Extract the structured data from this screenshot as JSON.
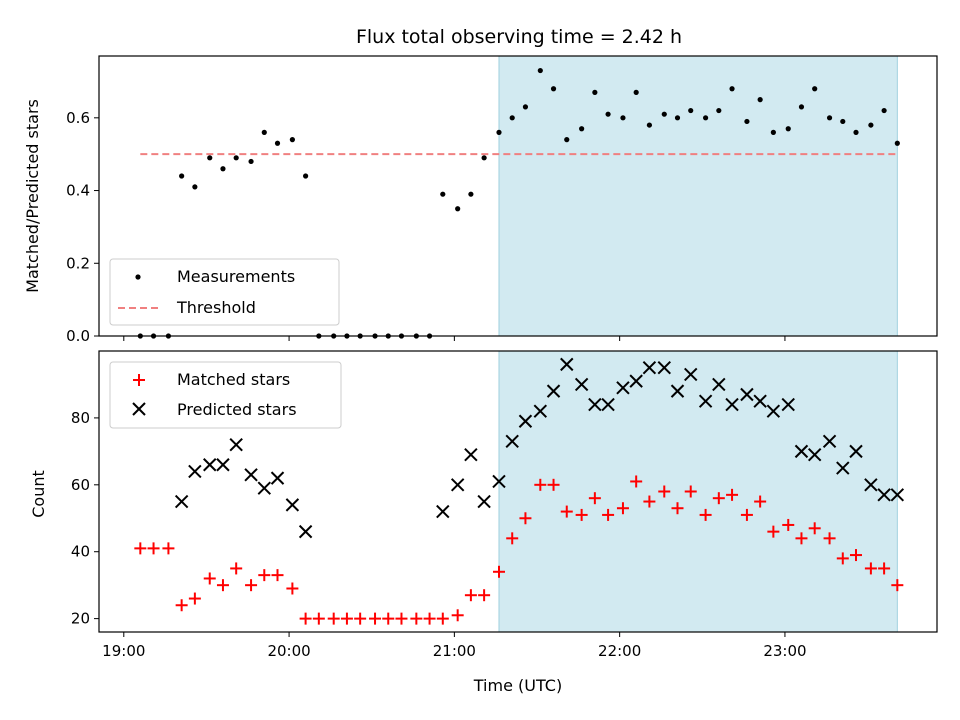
{
  "title": "Flux total observing time = 2.42 h",
  "x_axis": {
    "label": "Time (UTC)",
    "ticks": [
      {
        "value": 19.0,
        "label": "19:00"
      },
      {
        "value": 20.0,
        "label": "20:00"
      },
      {
        "value": 21.0,
        "label": "21:00"
      },
      {
        "value": 22.0,
        "label": "22:00"
      },
      {
        "value": 23.0,
        "label": "23:00"
      }
    ],
    "range": [
      18.85,
      23.92
    ]
  },
  "colors": {
    "measurement": "#000000",
    "threshold": "#f08080",
    "matched": "#ff0000",
    "predicted": "#000000",
    "highlight": "#add8e6"
  },
  "chart_data": [
    {
      "type": "scatter",
      "name": "ratio-panel",
      "ylabel": "Matched/Predicted stars",
      "ylim": [
        0,
        0.77
      ],
      "yticks": [
        0.0,
        0.2,
        0.4,
        0.6
      ],
      "highlight_span": [
        21.27,
        23.68
      ],
      "threshold": {
        "name": "Threshold",
        "value": 0.5,
        "x_range": [
          19.1,
          23.68
        ]
      },
      "legend": {
        "placement": "lower-left"
      },
      "series": [
        {
          "name": "Measurements",
          "x": [
            19.1,
            19.18,
            19.27,
            19.35,
            19.43,
            19.52,
            19.6,
            19.68,
            19.77,
            19.85,
            19.93,
            20.02,
            20.1,
            20.18,
            20.27,
            20.35,
            20.43,
            20.52,
            20.6,
            20.68,
            20.77,
            20.85,
            20.93,
            21.02,
            21.1,
            21.18,
            21.27,
            21.35,
            21.43,
            21.52,
            21.6,
            21.68,
            21.77,
            21.85,
            21.93,
            22.02,
            22.1,
            22.18,
            22.27,
            22.35,
            22.43,
            22.52,
            22.6,
            22.68,
            22.77,
            22.85,
            22.93,
            23.02,
            23.1,
            23.18,
            23.27,
            23.35,
            23.43,
            23.52,
            23.6,
            23.68
          ],
          "y": [
            0,
            0,
            0,
            0.44,
            0.41,
            0.49,
            0.46,
            0.49,
            0.48,
            0.56,
            0.53,
            0.54,
            0.44,
            0,
            0,
            0,
            0,
            0,
            0,
            0,
            0,
            0,
            0.39,
            0.35,
            0.39,
            0.49,
            0.56,
            0.6,
            0.63,
            0.73,
            0.68,
            0.54,
            0.57,
            0.67,
            0.61,
            0.6,
            0.67,
            0.58,
            0.61,
            0.6,
            0.62,
            0.6,
            0.62,
            0.68,
            0.59,
            0.65,
            0.56,
            0.57,
            0.63,
            0.68,
            0.6,
            0.59,
            0.56,
            0.58,
            0.62,
            0.53
          ]
        }
      ]
    },
    {
      "type": "scatter",
      "name": "count-panel",
      "xlabel": "Time (UTC)",
      "ylabel": "Count",
      "ylim": [
        16,
        100
      ],
      "yticks": [
        20,
        40,
        60,
        80
      ],
      "highlight_span": [
        21.27,
        23.68
      ],
      "legend": {
        "placement": "top-left"
      },
      "series": [
        {
          "name": "Matched stars",
          "marker": "plus",
          "x": [
            19.1,
            19.18,
            19.27,
            19.35,
            19.43,
            19.52,
            19.6,
            19.68,
            19.77,
            19.85,
            19.93,
            20.02,
            20.1,
            20.18,
            20.27,
            20.35,
            20.43,
            20.52,
            20.6,
            20.68,
            20.77,
            20.85,
            20.93,
            21.02,
            21.1,
            21.18,
            21.27,
            21.35,
            21.43,
            21.52,
            21.6,
            21.68,
            21.77,
            21.85,
            21.93,
            22.02,
            22.1,
            22.18,
            22.27,
            22.35,
            22.43,
            22.52,
            22.6,
            22.68,
            22.77,
            22.85,
            22.93,
            23.02,
            23.1,
            23.18,
            23.27,
            23.35,
            23.43,
            23.52,
            23.6,
            23.68
          ],
          "y": [
            41,
            41,
            41,
            24,
            26,
            32,
            30,
            35,
            30,
            33,
            33,
            29,
            20,
            20,
            20,
            20,
            20,
            20,
            20,
            20,
            20,
            20,
            20,
            21,
            27,
            27,
            34,
            44,
            50,
            60,
            60,
            52,
            51,
            56,
            51,
            53,
            61,
            55,
            58,
            53,
            58,
            51,
            56,
            57,
            51,
            55,
            46,
            48,
            44,
            47,
            44,
            38,
            39,
            35,
            35,
            30
          ]
        },
        {
          "name": "Predicted stars",
          "marker": "x",
          "x": [
            19.35,
            19.43,
            19.52,
            19.6,
            19.68,
            19.77,
            19.85,
            19.93,
            20.02,
            20.1,
            20.93,
            21.02,
            21.1,
            21.18,
            21.27,
            21.35,
            21.43,
            21.52,
            21.6,
            21.68,
            21.77,
            21.85,
            21.93,
            22.02,
            22.1,
            22.18,
            22.27,
            22.35,
            22.43,
            22.52,
            22.6,
            22.68,
            22.77,
            22.85,
            22.93,
            23.02,
            23.1,
            23.18,
            23.27,
            23.35,
            23.43,
            23.52,
            23.6,
            23.68
          ],
          "y": [
            55,
            64,
            66,
            66,
            72,
            63,
            59,
            62,
            54,
            46,
            52,
            60,
            69,
            55,
            61,
            73,
            79,
            82,
            88,
            96,
            90,
            84,
            84,
            89,
            91,
            95,
            95,
            88,
            93,
            85,
            90,
            84,
            87,
            85,
            82,
            84,
            70,
            69,
            73,
            65,
            70,
            60,
            57,
            57
          ]
        }
      ]
    }
  ]
}
